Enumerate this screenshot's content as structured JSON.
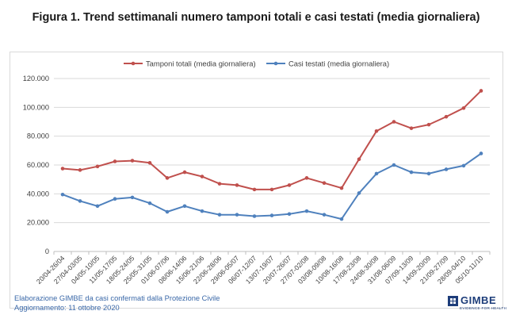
{
  "title": "Figura 1. Trend settimanali numero tamponi totali e casi testati (media giornaliera)",
  "footer": {
    "source": "Elaborazione GIMBE da casi confermati dalla Protezione Civile",
    "updated": "Aggiornamento:  11 ottobre 2020"
  },
  "logo": {
    "name": "GIMBE",
    "tagline": "EVIDENCE FOR HEALTH"
  },
  "chart_data": {
    "type": "line",
    "categories": [
      "20/04-26/04",
      "27/04-03/05",
      "04/05-10/05",
      "11/05-17/05",
      "18/05-24/05",
      "25/05-31/05",
      "01/06-07/06",
      "08/06-14/06",
      "15/06-21/06",
      "22/06-28/06",
      "29/06-05/07",
      "06/07-12/07",
      "13/07-19/07",
      "20/07-26/07",
      "27/07-02/08",
      "03/08-09/08",
      "10/08-16/08",
      "17/08-23/08",
      "24/08-30/08",
      "31/08-06/09",
      "07/09-13/09",
      "14/09-20/09",
      "21/09-27/09",
      "28/09-04/10",
      "05/10-11/10"
    ],
    "series": [
      {
        "name": "Tamponi totali (media giornaliera)",
        "color": "#c0504d",
        "values": [
          57500,
          56500,
          59000,
          62500,
          63000,
          61500,
          51000,
          55000,
          52000,
          47000,
          46000,
          43000,
          43000,
          46000,
          51000,
          47500,
          44000,
          64000,
          83500,
          90000,
          85500,
          88000,
          93500,
          99500,
          111500
        ]
      },
      {
        "name": "Casi testati (media giornaliera)",
        "color": "#4f81bd",
        "values": [
          39500,
          35000,
          31500,
          36500,
          37500,
          33500,
          27500,
          31500,
          28000,
          25500,
          25500,
          24500,
          25000,
          26000,
          28000,
          25500,
          22500,
          40500,
          54000,
          60000,
          55000,
          54000,
          57000,
          59500,
          68000
        ]
      }
    ],
    "ylim": [
      0,
      120000
    ],
    "yticks": [
      "0",
      "20.000",
      "40.000",
      "60.000",
      "80.000",
      "100.000",
      "120.000"
    ],
    "grid": true,
    "legend": "top-center"
  }
}
